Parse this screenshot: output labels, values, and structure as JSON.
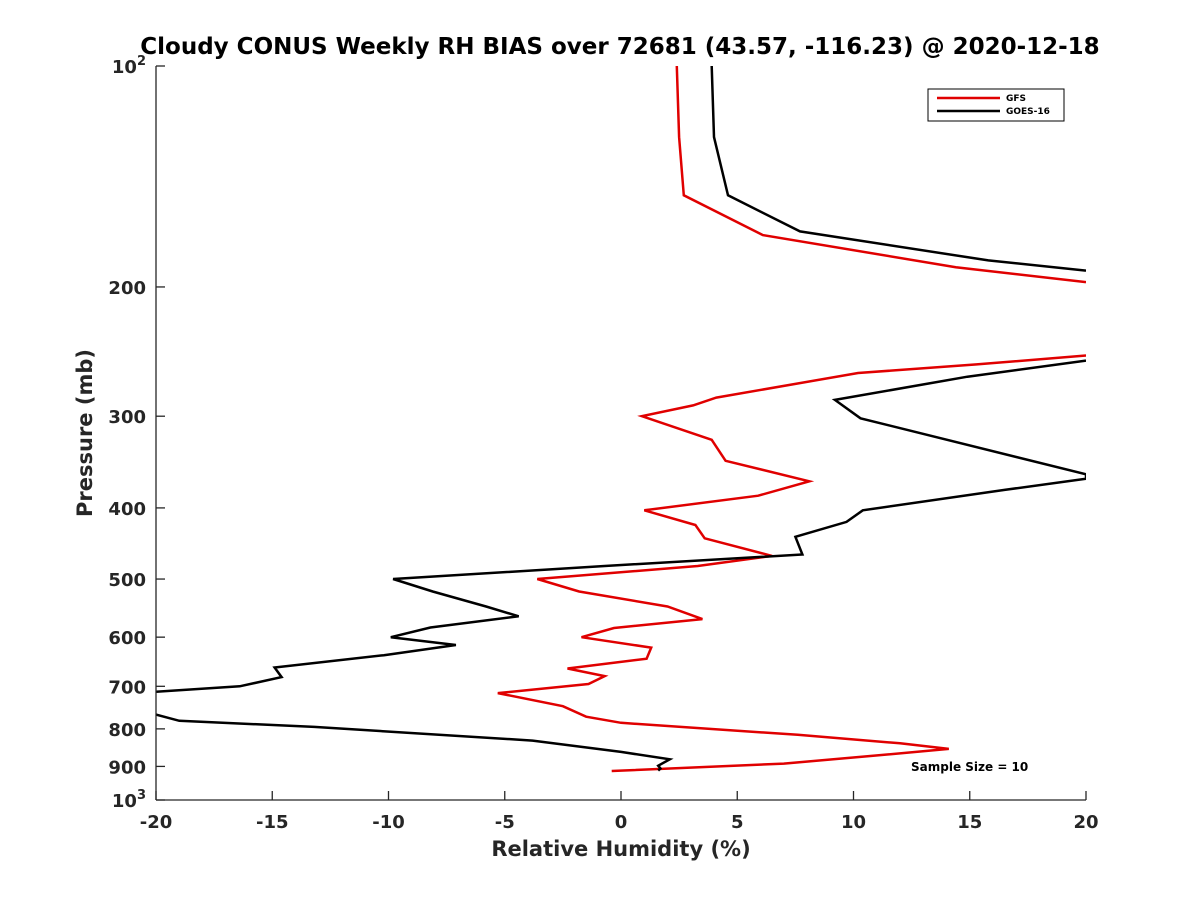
{
  "chart_data": {
    "type": "line",
    "title": "Cloudy CONUS Weekly RH BIAS over 72681 (43.57, -116.23) @ 2020-12-18",
    "xlabel": "Relative Humidity (%)",
    "ylabel": "Pressure (mb)",
    "xlim": [
      -20,
      20
    ],
    "ylim": [
      100,
      1000
    ],
    "yscale": "log",
    "y_reversed": true,
    "grid": false,
    "legend_position": "top-right",
    "x_ticks": [
      "-20",
      "-15",
      "-10",
      "-5",
      "0",
      "5",
      "10",
      "15",
      "20"
    ],
    "x_tick_values": [
      -20,
      -15,
      -10,
      -5,
      0,
      5,
      10,
      15,
      20
    ],
    "y_ticks": [
      {
        "value": 100,
        "base": "10",
        "exp": "2"
      },
      {
        "value": 200,
        "label": "200"
      },
      {
        "value": 300,
        "label": "300"
      },
      {
        "value": 400,
        "label": "400"
      },
      {
        "value": 500,
        "label": "500"
      },
      {
        "value": 600,
        "label": "600"
      },
      {
        "value": 700,
        "label": "700"
      },
      {
        "value": 800,
        "label": "800"
      },
      {
        "value": 900,
        "label": "900"
      },
      {
        "value": 1000,
        "base": "10",
        "exp": "3"
      }
    ],
    "series": [
      {
        "name": "GFS",
        "color": "#e00000",
        "segments": [
          [
            {
              "x": 2.4,
              "y": 100
            },
            {
              "x": 2.5,
              "y": 125
            },
            {
              "x": 2.7,
              "y": 150
            },
            {
              "x": 6.1,
              "y": 170
            },
            {
              "x": 14.4,
              "y": 188
            },
            {
              "x": 20,
              "y": 197
            }
          ],
          [
            {
              "x": 20,
              "y": 248
            },
            {
              "x": 15.3,
              "y": 255
            },
            {
              "x": 10.2,
              "y": 262
            },
            {
              "x": 4.1,
              "y": 283
            },
            {
              "x": 3.1,
              "y": 290
            },
            {
              "x": 0.9,
              "y": 300
            },
            {
              "x": 3.9,
              "y": 323
            },
            {
              "x": 4.5,
              "y": 345
            },
            {
              "x": 8.1,
              "y": 368
            },
            {
              "x": 5.9,
              "y": 385
            },
            {
              "x": 1.0,
              "y": 403
            },
            {
              "x": 3.2,
              "y": 422
            },
            {
              "x": 3.6,
              "y": 440
            },
            {
              "x": 6.5,
              "y": 465
            },
            {
              "x": 3.3,
              "y": 480
            },
            {
              "x": -3.6,
              "y": 500
            },
            {
              "x": -1.8,
              "y": 520
            },
            {
              "x": 2.0,
              "y": 545
            },
            {
              "x": 3.5,
              "y": 567
            },
            {
              "x": -0.3,
              "y": 583
            },
            {
              "x": -1.7,
              "y": 600
            },
            {
              "x": 1.3,
              "y": 620
            },
            {
              "x": 1.1,
              "y": 642
            },
            {
              "x": -2.3,
              "y": 662
            },
            {
              "x": -0.7,
              "y": 678
            },
            {
              "x": -1.4,
              "y": 695
            },
            {
              "x": -5.3,
              "y": 715
            },
            {
              "x": -2.5,
              "y": 745
            },
            {
              "x": -1.5,
              "y": 770
            },
            {
              "x": 0,
              "y": 785
            },
            {
              "x": 7.6,
              "y": 815
            },
            {
              "x": 12.0,
              "y": 837
            },
            {
              "x": 14.1,
              "y": 852
            },
            {
              "x": 10.6,
              "y": 872
            },
            {
              "x": 7.0,
              "y": 892
            },
            {
              "x": -0.4,
              "y": 913
            }
          ]
        ]
      },
      {
        "name": "GOES-16",
        "color": "#000000",
        "segments": [
          [
            {
              "x": 3.9,
              "y": 100
            },
            {
              "x": 4.0,
              "y": 125
            },
            {
              "x": 4.6,
              "y": 150
            },
            {
              "x": 7.7,
              "y": 168
            },
            {
              "x": 15.8,
              "y": 184
            },
            {
              "x": 20,
              "y": 190
            }
          ],
          [
            {
              "x": 20,
              "y": 252
            },
            {
              "x": 14.9,
              "y": 265
            },
            {
              "x": 9.2,
              "y": 285
            },
            {
              "x": 10.3,
              "y": 302
            },
            {
              "x": 20,
              "y": 360
            },
            {
              "x": 20,
              "y": 365
            },
            {
              "x": 16.5,
              "y": 378
            },
            {
              "x": 10.4,
              "y": 403
            },
            {
              "x": 9.7,
              "y": 418
            },
            {
              "x": 7.5,
              "y": 438
            },
            {
              "x": 7.8,
              "y": 463
            },
            {
              "x": -0.7,
              "y": 480
            },
            {
              "x": -9.8,
              "y": 500
            },
            {
              "x": -8.1,
              "y": 520
            },
            {
              "x": -5.8,
              "y": 545
            },
            {
              "x": -4.4,
              "y": 562
            },
            {
              "x": -8.2,
              "y": 582
            },
            {
              "x": -9.9,
              "y": 600
            },
            {
              "x": -7.1,
              "y": 615
            },
            {
              "x": -10.2,
              "y": 635
            },
            {
              "x": -14.9,
              "y": 660
            },
            {
              "x": -14.6,
              "y": 680
            },
            {
              "x": -16.4,
              "y": 700
            },
            {
              "x": -20,
              "y": 712
            }
          ],
          [
            {
              "x": -20,
              "y": 765
            },
            {
              "x": -19.0,
              "y": 780
            },
            {
              "x": -13.2,
              "y": 795
            },
            {
              "x": -3.8,
              "y": 830
            },
            {
              "x": 0,
              "y": 860
            },
            {
              "x": 2.1,
              "y": 880
            },
            {
              "x": 1.6,
              "y": 898
            },
            {
              "x": 1.7,
              "y": 906
            },
            {
              "x": 1.6,
              "y": 912
            }
          ]
        ]
      }
    ],
    "annotations": [
      "Sample Size = 10"
    ]
  }
}
